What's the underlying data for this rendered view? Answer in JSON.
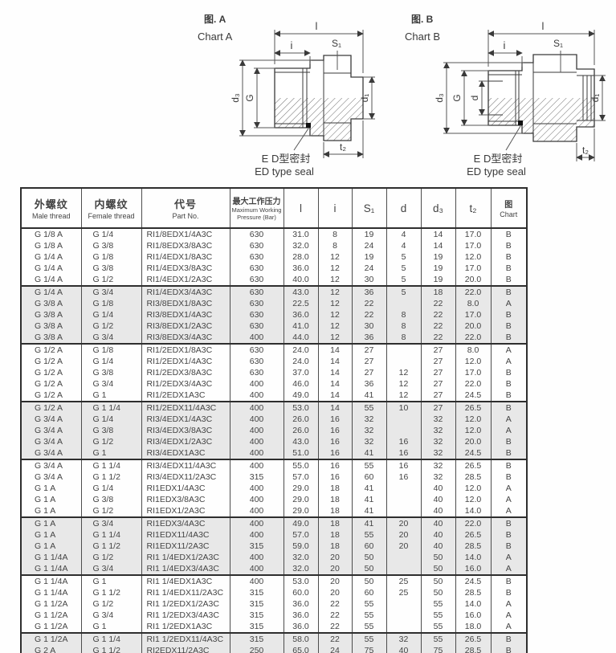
{
  "colors": {
    "shaded_row": "#e8e8e8",
    "line": "#2e2e2e",
    "text": "#3d3d3d",
    "seal": "#111111"
  },
  "diagrams": [
    {
      "id": "A",
      "title_cn": "图. A",
      "title_en": "Chart  A",
      "dims": {
        "l": "l",
        "i": "i",
        "s1": "S₁",
        "g": "G",
        "d3": "d₃",
        "d1": "d₁",
        "t2": "t₂"
      },
      "seal_cn": "E D型密封",
      "seal_en": "ED type seal"
    },
    {
      "id": "B",
      "title_cn": "图. B",
      "title_en": "Chart  B",
      "dims": {
        "l": "l",
        "i": "i",
        "s1": "S₁",
        "g": "G",
        "d": "d",
        "d3": "d₃",
        "d1": "d₁",
        "t2": "t₂"
      },
      "seal_cn": "E D型密封",
      "seal_en": "ED type seal"
    }
  ],
  "table": {
    "headers": {
      "male": {
        "cn": "外螺纹",
        "en": "Male thread"
      },
      "female": {
        "cn": "内螺纹",
        "en": "Female thread"
      },
      "part": {
        "cn": "代号",
        "en": "Part No."
      },
      "pressure": {
        "cn": "最大工作压力",
        "en": "Maximum Working Pressure (Bar)"
      },
      "l": "l",
      "i": "i",
      "s1": "S₁",
      "d": "d",
      "d3": "d₃",
      "t2": "t₂",
      "chart": {
        "cn": "图",
        "en": "Chart"
      }
    },
    "groups": [
      {
        "shaded": false,
        "rows": [
          [
            "G 1/8 A",
            "G 1/4",
            "RI1/8EDX1/4A3C",
            "630",
            "31.0",
            "8",
            "19",
            "4",
            "14",
            "17.0",
            "B"
          ],
          [
            "G 1/8 A",
            "G 3/8",
            "RI1/8EDX3/8A3C",
            "630",
            "32.0",
            "8",
            "24",
            "4",
            "14",
            "17.0",
            "B"
          ],
          [
            "G 1/4 A",
            "G 1/8",
            "RI1/4EDX1/8A3C",
            "630",
            "28.0",
            "12",
            "19",
            "5",
            "19",
            "12.0",
            "B"
          ],
          [
            "G 1/4 A",
            "G 3/8",
            "RI1/4EDX3/8A3C",
            "630",
            "36.0",
            "12",
            "24",
            "5",
            "19",
            "17.0",
            "B"
          ],
          [
            "G 1/4 A",
            "G 1/2",
            "RI1/4EDX1/2A3C",
            "630",
            "40.0",
            "12",
            "30",
            "5",
            "19",
            "20.0",
            "B"
          ]
        ]
      },
      {
        "shaded": true,
        "rows": [
          [
            "G 1/4 A",
            "G 3/4",
            "RI1/4EDX3/4A3C",
            "630",
            "43.0",
            "12",
            "36",
            "5",
            "18",
            "22.0",
            "B"
          ],
          [
            "G 3/8 A",
            "G 1/8",
            "RI3/8EDX1/8A3C",
            "630",
            "22.5",
            "12",
            "22",
            "",
            "22",
            "8.0",
            "A"
          ],
          [
            "G 3/8 A",
            "G 1/4",
            "RI3/8EDX1/4A3C",
            "630",
            "36.0",
            "12",
            "22",
            "8",
            "22",
            "17.0",
            "B"
          ],
          [
            "G 3/8 A",
            "G 1/2",
            "RI3/8EDX1/2A3C",
            "630",
            "41.0",
            "12",
            "30",
            "8",
            "22",
            "20.0",
            "B"
          ],
          [
            "G 3/8 A",
            "G 3/4",
            "RI3/8EDX3/4A3C",
            "400",
            "44.0",
            "12",
            "36",
            "8",
            "22",
            "22.0",
            "B"
          ]
        ]
      },
      {
        "shaded": false,
        "rows": [
          [
            "G 1/2 A",
            "G 1/8",
            "RI1/2EDX1/8A3C",
            "630",
            "24.0",
            "14",
            "27",
            "",
            "27",
            "8.0",
            "A"
          ],
          [
            "G 1/2 A",
            "G 1/4",
            "RI1/2EDX1/4A3C",
            "630",
            "24.0",
            "14",
            "27",
            "",
            "27",
            "12.0",
            "A"
          ],
          [
            "G 1/2 A",
            "G 3/8",
            "RI1/2EDX3/8A3C",
            "630",
            "37.0",
            "14",
            "27",
            "12",
            "27",
            "17.0",
            "B"
          ],
          [
            "G 1/2 A",
            "G 3/4",
            "RI1/2EDX3/4A3C",
            "400",
            "46.0",
            "14",
            "36",
            "12",
            "27",
            "22.0",
            "B"
          ],
          [
            "G 1/2 A",
            "G 1",
            "RI1/2EDX1A3C",
            "400",
            "49.0",
            "14",
            "41",
            "12",
            "27",
            "24.5",
            "B"
          ]
        ]
      },
      {
        "shaded": true,
        "rows": [
          [
            "G 1/2 A",
            "G 1 1/4",
            "RI1/2EDX11/4A3C",
            "400",
            "53.0",
            "14",
            "55",
            "10",
            "27",
            "26.5",
            "B"
          ],
          [
            "G 3/4 A",
            "G 1/4",
            "RI3/4EDX1/4A3C",
            "400",
            "26.0",
            "16",
            "32",
            "",
            "32",
            "12.0",
            "A"
          ],
          [
            "G 3/4 A",
            "G 3/8",
            "RI3/4EDX3/8A3C",
            "400",
            "26.0",
            "16",
            "32",
            "",
            "32",
            "12.0",
            "A"
          ],
          [
            "G 3/4 A",
            "G 1/2",
            "RI3/4EDX1/2A3C",
            "400",
            "43.0",
            "16",
            "32",
            "16",
            "32",
            "20.0",
            "B"
          ],
          [
            "G 3/4 A",
            "G 1",
            "RI3/4EDX1A3C",
            "400",
            "51.0",
            "16",
            "41",
            "16",
            "32",
            "24.5",
            "B"
          ]
        ]
      },
      {
        "shaded": false,
        "rows": [
          [
            "G 3/4 A",
            "G 1 1/4",
            "RI3/4EDX11/4A3C",
            "400",
            "55.0",
            "16",
            "55",
            "16",
            "32",
            "26.5",
            "B"
          ],
          [
            "G 3/4 A",
            "G 1 1/2",
            "RI3/4EDX11/2A3C",
            "315",
            "57.0",
            "16",
            "60",
            "16",
            "32",
            "28.5",
            "B"
          ],
          [
            "G 1 A",
            "G 1/4",
            "RI1EDX1/4A3C",
            "400",
            "29.0",
            "18",
            "41",
            "",
            "40",
            "12.0",
            "A"
          ],
          [
            "G 1 A",
            "G 3/8",
            "RI1EDX3/8A3C",
            "400",
            "29.0",
            "18",
            "41",
            "",
            "40",
            "12.0",
            "A"
          ],
          [
            "G 1 A",
            "G 1/2",
            "RI1EDX1/2A3C",
            "400",
            "29.0",
            "18",
            "41",
            "",
            "40",
            "14.0",
            "A"
          ]
        ]
      },
      {
        "shaded": true,
        "rows": [
          [
            "G 1 A",
            "G 3/4",
            "RI1EDX3/4A3C",
            "400",
            "49.0",
            "18",
            "41",
            "20",
            "40",
            "22.0",
            "B"
          ],
          [
            "G 1 A",
            "G 1 1/4",
            "RI1EDX11/4A3C",
            "400",
            "57.0",
            "18",
            "55",
            "20",
            "40",
            "26.5",
            "B"
          ],
          [
            "G 1 A",
            "G 1 1/2",
            "RI1EDX11/2A3C",
            "315",
            "59.0",
            "18",
            "60",
            "20",
            "40",
            "28.5",
            "B"
          ],
          [
            "G 1 1/4A",
            "G 1/2",
            "RI1 1/4EDX1/2A3C",
            "400",
            "32.0",
            "20",
            "50",
            "",
            "50",
            "14.0",
            "A"
          ],
          [
            "G 1 1/4A",
            "G 3/4",
            "RI1 1/4EDX3/4A3C",
            "400",
            "32.0",
            "20",
            "50",
            "",
            "50",
            "16.0",
            "A"
          ]
        ]
      },
      {
        "shaded": false,
        "rows": [
          [
            "G 1 1/4A",
            "G 1",
            "RI1 1/4EDX1A3C",
            "400",
            "53.0",
            "20",
            "50",
            "25",
            "50",
            "24.5",
            "B"
          ],
          [
            "G 1 1/4A",
            "G 1 1/2",
            "RI1 1/4EDX11/2A3C",
            "315",
            "60.0",
            "20",
            "60",
            "25",
            "50",
            "28.5",
            "B"
          ],
          [
            "G 1 1/2A",
            "G 1/2",
            "RI1 1/2EDX1/2A3C",
            "315",
            "36.0",
            "22",
            "55",
            "",
            "55",
            "14.0",
            "A"
          ],
          [
            "G 1 1/2A",
            "G 3/4",
            "RI1 1/2EDX3/4A3C",
            "315",
            "36.0",
            "22",
            "55",
            "",
            "55",
            "16.0",
            "A"
          ],
          [
            "G 1 1/2A",
            "G 1",
            "RI1 1/2EDX1A3C",
            "315",
            "36.0",
            "22",
            "55",
            "",
            "55",
            "18.0",
            "A"
          ]
        ]
      },
      {
        "shaded": true,
        "rows": [
          [
            "G 1 1/2A",
            "G 1 1/4",
            "RI1 1/2EDX11/4A3C",
            "315",
            "58.0",
            "22",
            "55",
            "32",
            "55",
            "26.5",
            "B"
          ],
          [
            "G 2 A",
            "G 1 1/2",
            "RI2EDX11/2A3C",
            "250",
            "65.0",
            "24",
            "75",
            "40",
            "75",
            "28.5",
            "B"
          ]
        ]
      }
    ]
  }
}
